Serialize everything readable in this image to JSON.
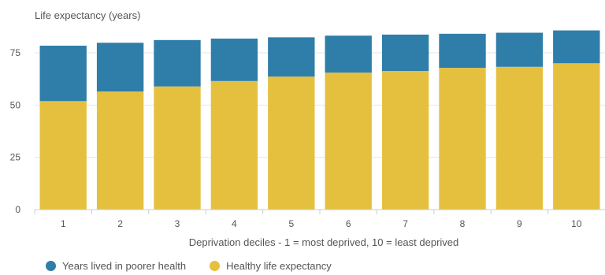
{
  "chart_data": {
    "type": "bar",
    "stacked": true,
    "ylabel": "Life expectancy (years)",
    "xlabel": "Deprivation deciles - 1 = most deprived, 10 = least deprived",
    "categories": [
      "1",
      "2",
      "3",
      "4",
      "5",
      "6",
      "7",
      "8",
      "9",
      "10"
    ],
    "y_ticks": [
      0,
      25,
      50,
      75
    ],
    "ylim": [
      0,
      87
    ],
    "grid": true,
    "legend_position": "bottom-left",
    "series": [
      {
        "name": "Healthy life expectancy",
        "color": "#e5c03f",
        "values": [
          51.9,
          56.5,
          58.9,
          61.5,
          63.6,
          65.5,
          66.3,
          67.8,
          68.3,
          70.0
        ]
      },
      {
        "name": "Years lived in poorer health",
        "color": "#2e7ea9",
        "values": [
          26.5,
          23.3,
          22.2,
          20.3,
          18.8,
          17.7,
          17.4,
          16.3,
          16.3,
          15.7
        ]
      }
    ],
    "legend": [
      {
        "label": "Years lived in poorer health",
        "color": "#2e7ea9"
      },
      {
        "label": "Healthy life expectancy",
        "color": "#e5c03f"
      }
    ]
  }
}
